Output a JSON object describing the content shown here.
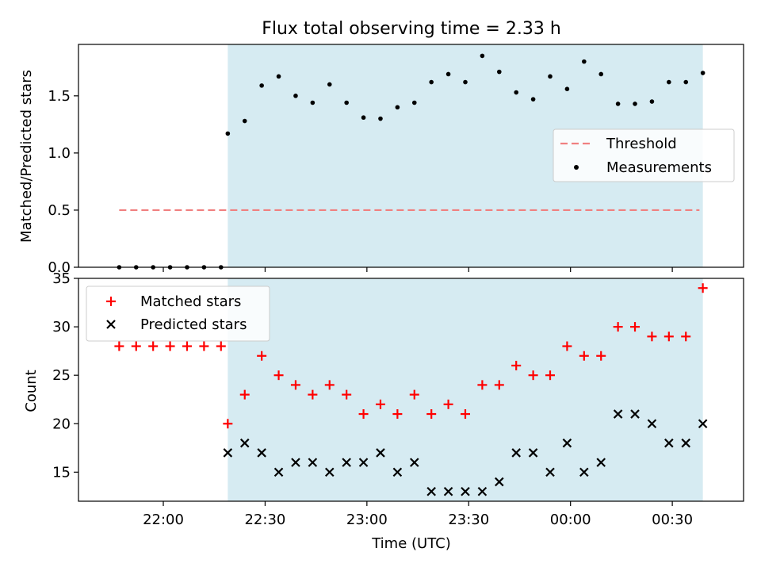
{
  "title": "Flux total observing time = 2.33 h",
  "colors": {
    "shade": "#add8e6",
    "threshold": "#f08080",
    "measurement": "#000000",
    "matched": "#ff0000",
    "predicted": "#000000"
  },
  "chart_data": [
    {
      "type": "scatter",
      "ylabel": "Matched/Predicted stars",
      "ylim": [
        0,
        1.95
      ],
      "yticks": [
        0.0,
        0.5,
        1.0,
        1.5
      ],
      "ytick_labels": [
        "0.0",
        "0.5",
        "1.0",
        "1.5"
      ],
      "legend_position": "center-right",
      "shaded_span": {
        "start": "22:19",
        "end": "00:39"
      },
      "threshold": {
        "name": "Threshold",
        "value": 0.5,
        "x_start": "21:47",
        "x_end": "00:38"
      },
      "series": [
        {
          "name": "Measurements",
          "x": [
            "21:47",
            "21:52",
            "21:57",
            "22:02",
            "22:07",
            "22:12",
            "22:17",
            "22:19",
            "22:24",
            "22:29",
            "22:34",
            "22:39",
            "22:44",
            "22:49",
            "22:54",
            "22:59",
            "23:04",
            "23:09",
            "23:14",
            "23:19",
            "23:24",
            "23:29",
            "23:34",
            "23:39",
            "23:44",
            "23:49",
            "23:54",
            "23:59",
            "00:04",
            "00:09",
            "00:14",
            "00:19",
            "00:24",
            "00:29",
            "00:34",
            "00:39"
          ],
          "values": [
            0,
            0,
            0,
            0,
            0,
            0,
            0,
            1.17,
            1.28,
            1.59,
            1.67,
            1.5,
            1.44,
            1.6,
            1.44,
            1.31,
            1.3,
            1.4,
            1.44,
            1.62,
            1.69,
            1.62,
            1.85,
            1.71,
            1.53,
            1.47,
            1.67,
            1.56,
            1.8,
            1.69,
            1.43,
            1.43,
            1.45,
            1.62,
            1.62,
            1.7
          ]
        }
      ]
    },
    {
      "type": "scatter",
      "ylabel": "Count",
      "xlabel": "Time (UTC)",
      "ylim": [
        12,
        35
      ],
      "yticks": [
        15,
        20,
        25,
        30,
        35
      ],
      "ytick_labels": [
        "15",
        "20",
        "25",
        "30",
        "35"
      ],
      "xticks": [
        "22:00",
        "22:30",
        "23:00",
        "23:30",
        "00:00",
        "00:30"
      ],
      "legend_position": "top-left",
      "shaded_span": {
        "start": "22:19",
        "end": "00:39"
      },
      "series": [
        {
          "name": "Matched stars",
          "x": [
            "21:47",
            "21:52",
            "21:57",
            "22:02",
            "22:07",
            "22:12",
            "22:17",
            "22:19",
            "22:24",
            "22:29",
            "22:34",
            "22:39",
            "22:44",
            "22:49",
            "22:54",
            "22:59",
            "23:04",
            "23:09",
            "23:14",
            "23:19",
            "23:24",
            "23:29",
            "23:34",
            "23:39",
            "23:44",
            "23:49",
            "23:54",
            "23:59",
            "00:04",
            "00:09",
            "00:14",
            "00:19",
            "00:24",
            "00:29",
            "00:34",
            "00:39"
          ],
          "values": [
            28,
            28,
            28,
            28,
            28,
            28,
            28,
            20,
            23,
            27,
            25,
            24,
            23,
            24,
            23,
            21,
            22,
            21,
            23,
            21,
            22,
            21,
            24,
            24,
            26,
            25,
            25,
            28,
            27,
            27,
            30,
            30,
            29,
            29,
            29,
            34
          ]
        },
        {
          "name": "Predicted stars",
          "x": [
            "22:19",
            "22:24",
            "22:29",
            "22:34",
            "22:39",
            "22:44",
            "22:49",
            "22:54",
            "22:59",
            "23:04",
            "23:09",
            "23:14",
            "23:19",
            "23:24",
            "23:29",
            "23:34",
            "23:39",
            "23:44",
            "23:49",
            "23:54",
            "23:59",
            "00:04",
            "00:09",
            "00:14",
            "00:19",
            "00:24",
            "00:29",
            "00:34",
            "00:39"
          ],
          "values": [
            17,
            18,
            17,
            15,
            16,
            16,
            15,
            16,
            16,
            17,
            15,
            16,
            13,
            13,
            13,
            13,
            14,
            17,
            17,
            15,
            18,
            15,
            16,
            21,
            21,
            20,
            18,
            18,
            20
          ]
        }
      ]
    }
  ]
}
